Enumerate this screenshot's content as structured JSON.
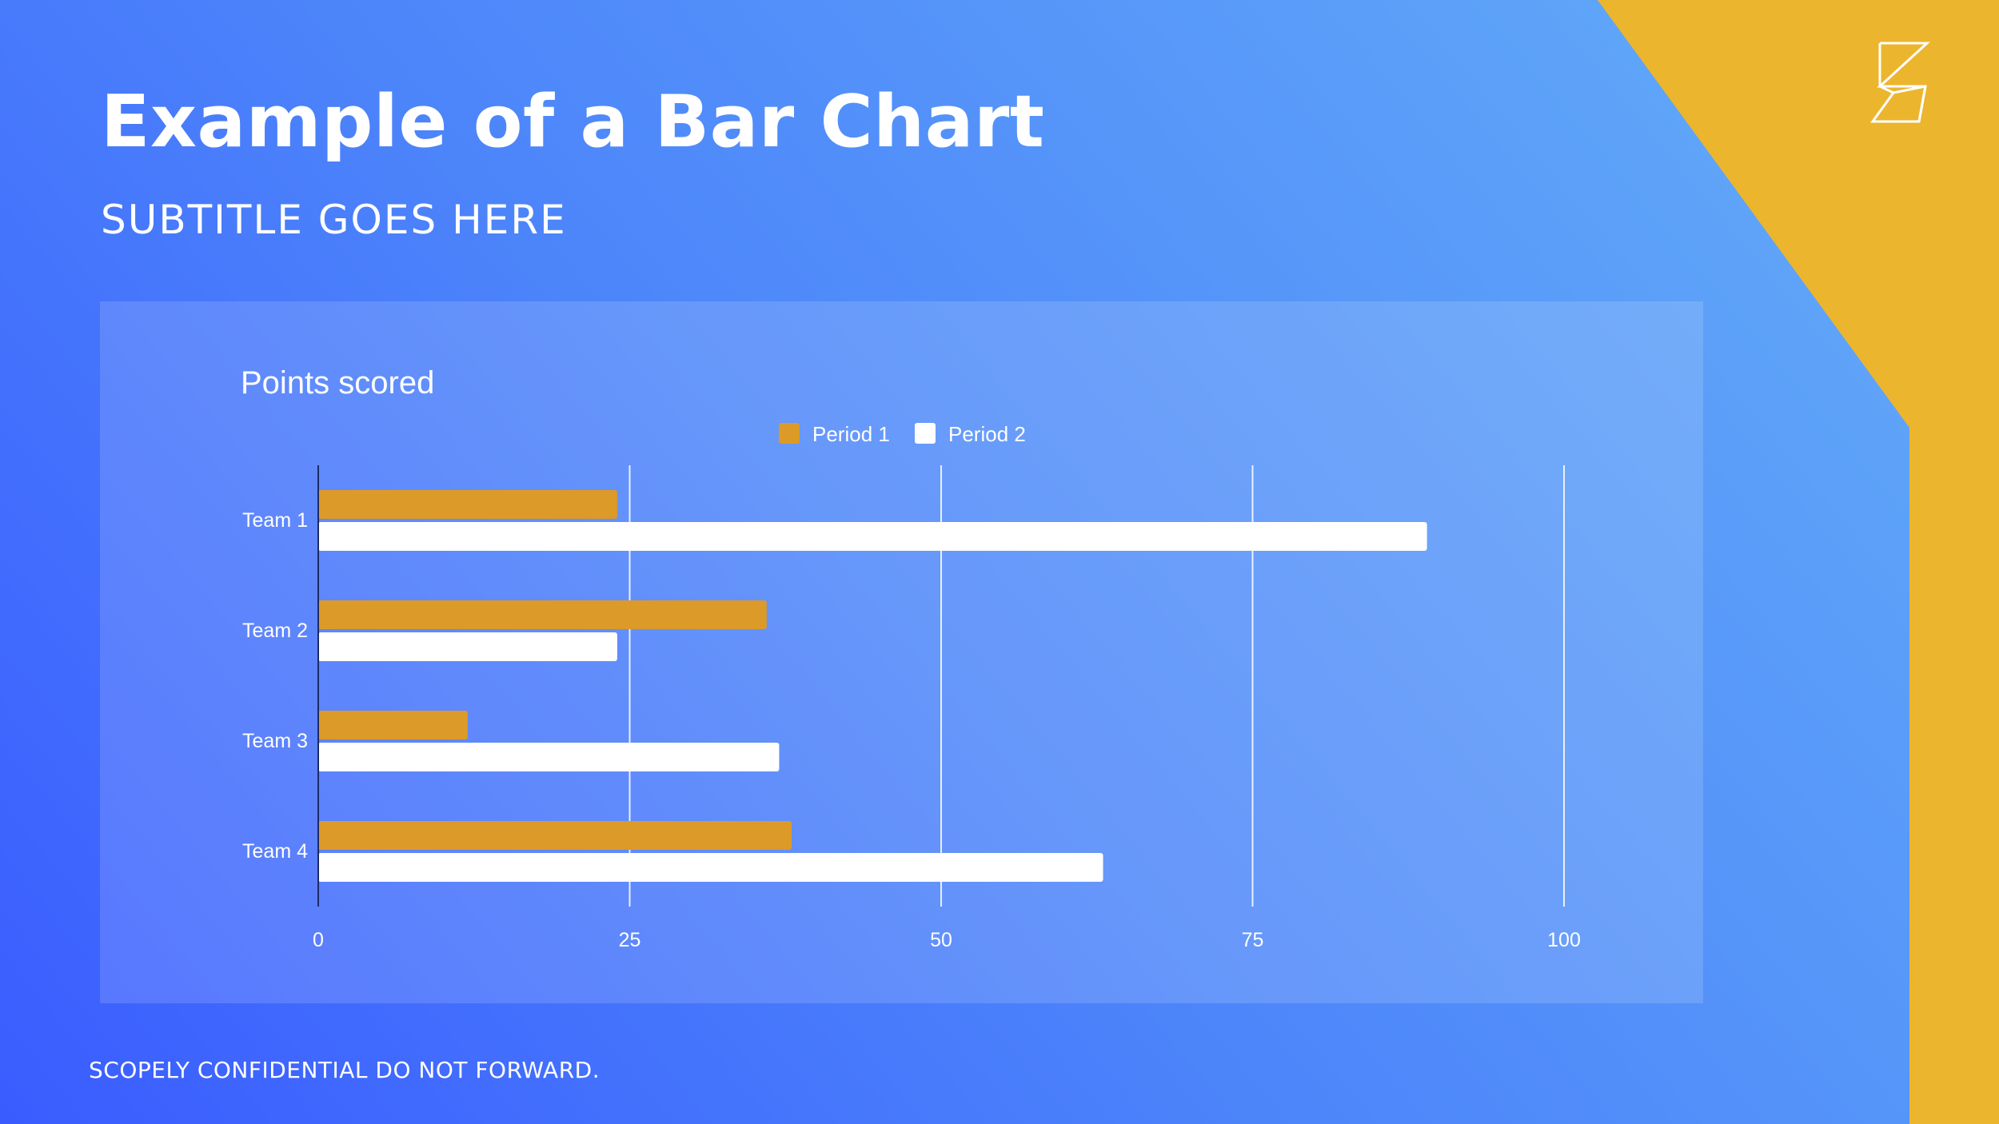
{
  "slide": {
    "title": "Example of a Bar Chart",
    "subtitle": "SUBTITLE GOES HERE",
    "footer": "SCOPELY CONFIDENTIAL DO NOT FORWARD.",
    "logo_icon": "scopely-logo-icon"
  },
  "colors": {
    "accent": "#ecb52e",
    "period1": "#dc9a28",
    "period2": "#ffffff",
    "gridline": "#ffffff",
    "text": "#ffffff"
  },
  "chart_data": {
    "type": "bar",
    "orientation": "horizontal",
    "title": "Points scored",
    "categories": [
      "Team 1",
      "Team 2",
      "Team 3",
      "Team 4"
    ],
    "series": [
      {
        "name": "Period 1",
        "values": [
          24,
          36,
          12,
          38
        ]
      },
      {
        "name": "Period 2",
        "values": [
          89,
          24,
          37,
          63
        ]
      }
    ],
    "xlim": [
      0,
      100
    ],
    "x_ticks": [
      "0",
      "25",
      "50",
      "75",
      "100"
    ],
    "grid": true,
    "legend": "top-center"
  }
}
